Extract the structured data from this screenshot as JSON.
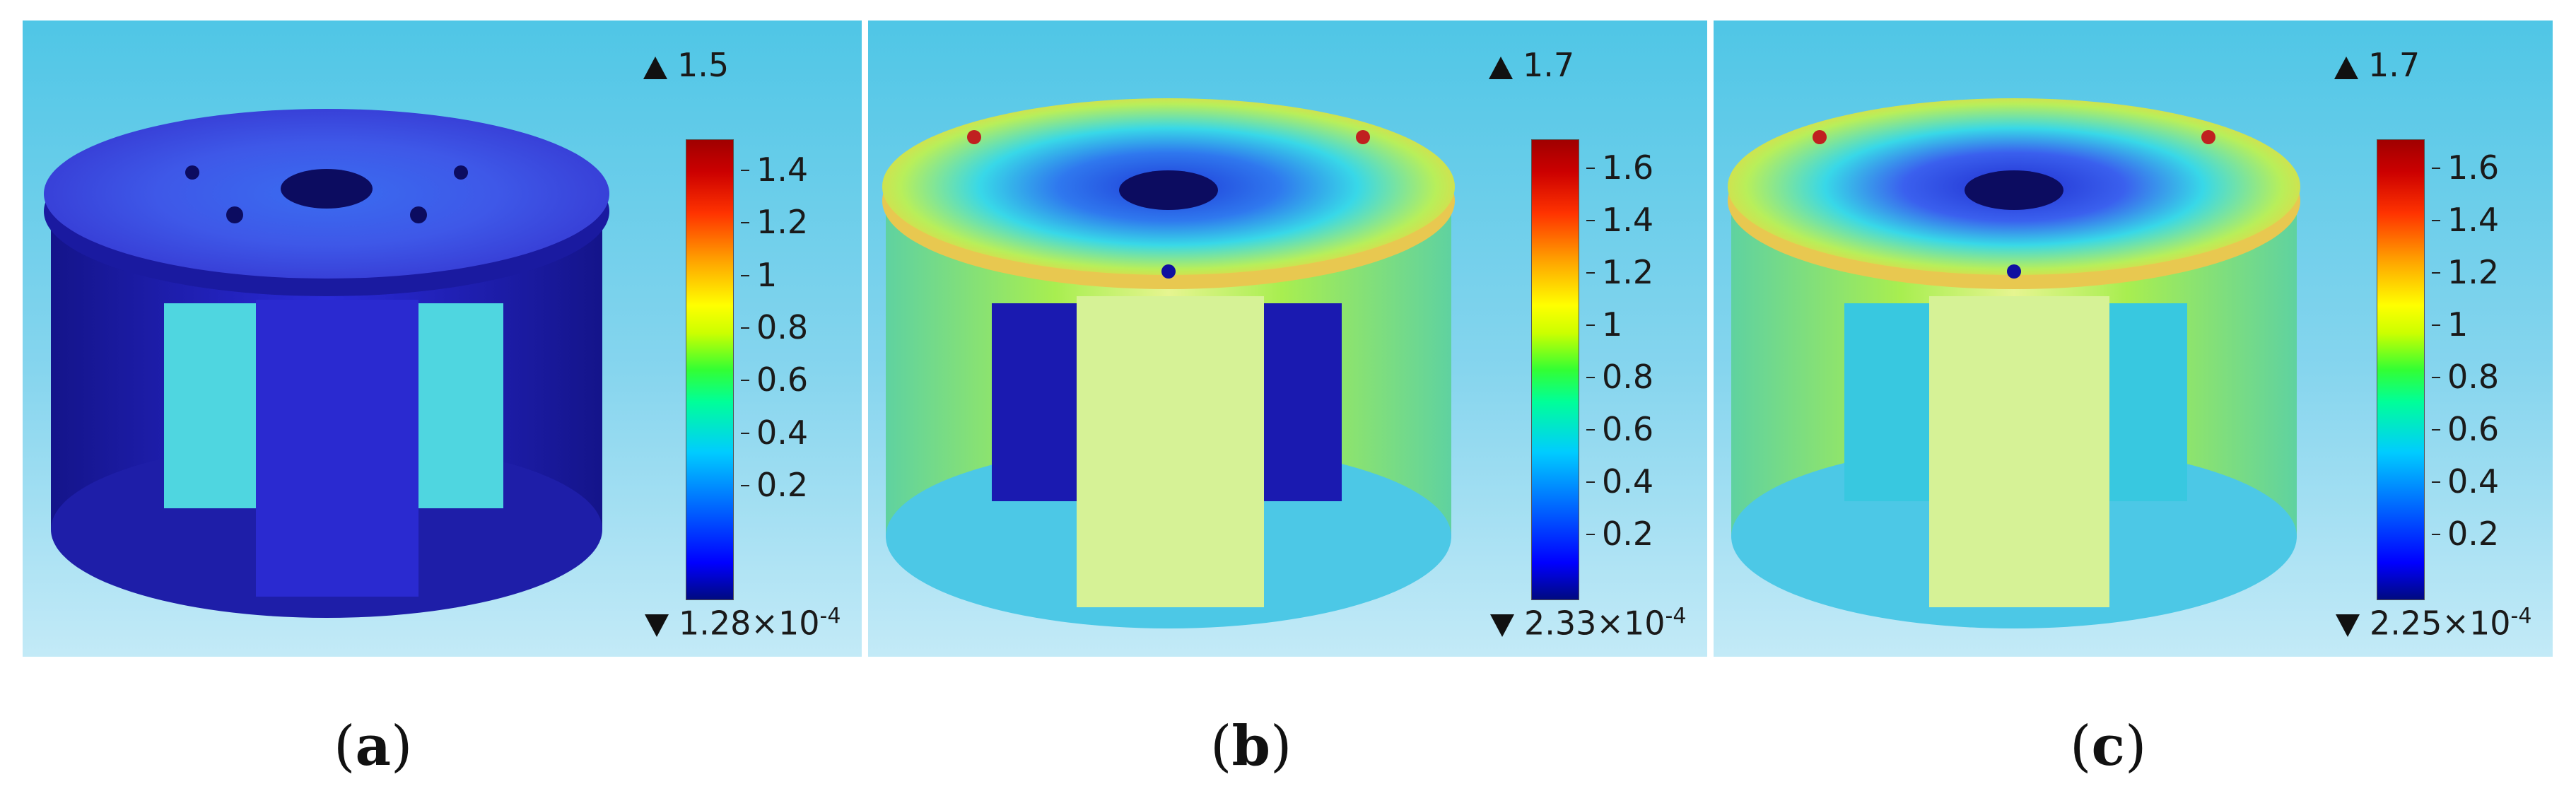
{
  "panels": [
    {
      "id": "a",
      "max_label": "1.5",
      "min_label": "1.28×10",
      "min_exp": "-4",
      "ticks": [
        "1.4",
        "1.2",
        "1",
        "0.8",
        "0.6",
        "0.4",
        "0.2"
      ],
      "caption_open": "(",
      "caption_letter": "a",
      "caption_close": ")"
    },
    {
      "id": "b",
      "max_label": "1.7",
      "min_label": "2.33×10",
      "min_exp": "-4",
      "ticks": [
        "1.6",
        "1.4",
        "1.2",
        "1",
        "0.8",
        "0.6",
        "0.4",
        "0.2"
      ],
      "caption_open": "(",
      "caption_letter": "b",
      "caption_close": ")"
    },
    {
      "id": "c",
      "max_label": "1.7",
      "min_label": "2.25×10",
      "min_exp": "-4",
      "ticks": [
        "1.6",
        "1.4",
        "1.2",
        "1",
        "0.8",
        "0.6",
        "0.4",
        "0.2"
      ],
      "caption_open": "(",
      "caption_letter": "c",
      "caption_close": ")"
    }
  ],
  "colors": {
    "background_top": "#4fc6e6",
    "background_bottom": "#c3eaf7",
    "low_stress": "#2a2ad8",
    "mid_stress": "#7ee85a",
    "high_stress": "#e02020"
  },
  "icons": [
    "max-triangle-icon",
    "min-triangle-icon"
  ]
}
